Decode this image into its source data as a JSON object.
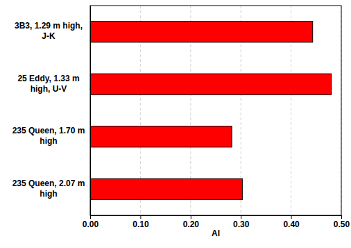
{
  "chart_data": {
    "type": "bar",
    "orientation": "horizontal",
    "x_label": "AI",
    "categories": [
      "3B3, 1.29 m high, J-K",
      "25 Eddy, 1.33 m high, U-V",
      "235 Queen, 1.70 m high",
      "235 Queen, 2.07 m high"
    ],
    "values": [
      0.443,
      0.48,
      0.282,
      0.303
    ],
    "color": "#ff0000",
    "xlim": [
      0,
      0.5
    ],
    "xticks": [
      {
        "value": 0,
        "label": "0.00"
      },
      {
        "value": 0.1,
        "label": "0.10"
      },
      {
        "value": 0.2,
        "label": "0.20"
      },
      {
        "value": 0.3,
        "label": "0.30"
      },
      {
        "value": 0.4,
        "label": "0.40"
      },
      {
        "value": 0.5,
        "label": "0.50"
      }
    ],
    "grid": true
  }
}
